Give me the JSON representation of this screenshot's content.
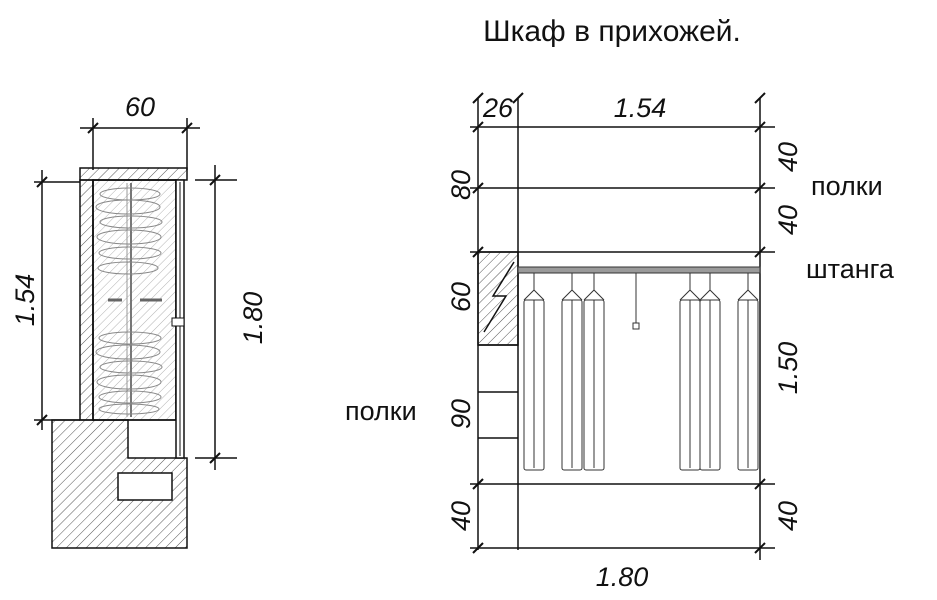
{
  "title": "Шкаф в прихожей.",
  "plan": {
    "width_dim": "60",
    "depth_dim": "1.54",
    "height_dim": "1.80"
  },
  "elevation": {
    "top_dims": [
      "26",
      "1.54"
    ],
    "bottom_dim": "1.80",
    "left_dims": [
      "80",
      "60",
      "90",
      "40"
    ],
    "right_dims": [
      "40",
      "40",
      "1.50",
      "40"
    ],
    "labels": {
      "shelves_top": "полки",
      "rod": "штанга",
      "shelves_left": "полки"
    }
  },
  "colors": {
    "line": "#111111",
    "hatch": "#555555",
    "rod": "#9a9a9a"
  }
}
